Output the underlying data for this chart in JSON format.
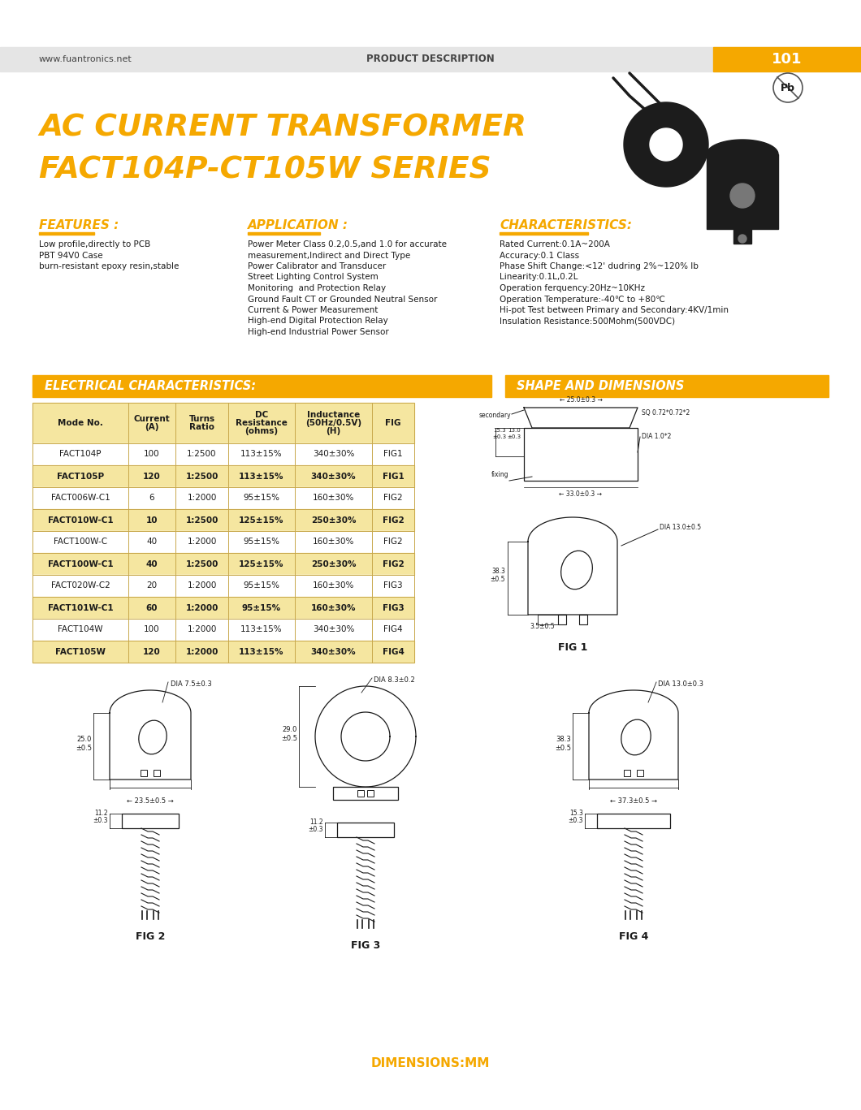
{
  "page_bg": "#ffffff",
  "header_bg": "#e5e5e5",
  "header_orange_bg": "#F5A800",
  "header_left_text": "www.fuantronics.net",
  "header_center_text": "PRODUCT DESCRIPTION",
  "header_right_text": "101",
  "title_line1": "AC CURRENT TRANSFORMER",
  "title_line2": "FACT104P-CT105W SERIES",
  "title_color": "#F5A800",
  "section_features_title": "FEATURES :",
  "section_application_title": "APPLICATION :",
  "section_characteristics_title": "CHARACTERISTICS:",
  "features_text": "Low profile,directly to PCB\nPBT 94V0 Case\nburn-resistant epoxy resin,stable",
  "application_text": "Power Meter Class 0.2,0.5,and 1.0 for accurate\nmeasurement,Indirect and Direct Type\nPower Calibrator and Transducer\nStreet Lighting Control System\nMonitoring  and Protection Relay\nGround Fault CT or Grounded Neutral Sensor\nCurrent & Power Measurement\nHigh-end Digital Protection Relay\nHigh-end Industrial Power Sensor",
  "characteristics_text": "Rated Current:0.1A~200A\nAccuracy:0.1 Class\nPhase Shift Change:<12' dudring 2%~120% Ib\nLinearity:0.1L,0.2L\nOperation ferquency:20Hz~10KHz\nOperation Temperature:-40℃ to +80℃\nHi-pot Test between Primary and Secondary:4KV/1min\nInsulation Resistance:500Mohm(500VDC)",
  "elec_section_title": "ELECTRICAL CHARACTERISTICS:",
  "shape_section_title": "SHAPE AND DIMENSIONS",
  "table_headers": [
    "Mode No.",
    "Current\n(A)",
    "Turns\nRatio",
    "DC\nResistance\n(ohms)",
    "Inductance\n(50Hz/0.5V)\n(H)",
    "FIG"
  ],
  "table_data": [
    [
      "FACT104P",
      "100",
      "1:2500",
      "113±15%",
      "340±30%",
      "FIG1"
    ],
    [
      "FACT105P",
      "120",
      "1:2500",
      "113±15%",
      "340±30%",
      "FIG1"
    ],
    [
      "FACT006W-C1",
      "6",
      "1:2000",
      "95±15%",
      "160±30%",
      "FIG2"
    ],
    [
      "FACT010W-C1",
      "10",
      "1:2500",
      "125±15%",
      "250±30%",
      "FIG2"
    ],
    [
      "FACT100W-C",
      "40",
      "1:2000",
      "95±15%",
      "160±30%",
      "FIG2"
    ],
    [
      "FACT100W-C1",
      "40",
      "1:2500",
      "125±15%",
      "250±30%",
      "FIG2"
    ],
    [
      "FACT020W-C2",
      "20",
      "1:2000",
      "95±15%",
      "160±30%",
      "FIG3"
    ],
    [
      "FACT101W-C1",
      "60",
      "1:2000",
      "95±15%",
      "160±30%",
      "FIG3"
    ],
    [
      "FACT104W",
      "100",
      "1:2000",
      "113±15%",
      "340±30%",
      "FIG4"
    ],
    [
      "FACT105W",
      "120",
      "1:2000",
      "113±15%",
      "340±30%",
      "FIG4"
    ]
  ],
  "highlight_rows": [
    1,
    3,
    5,
    7,
    9
  ],
  "dimensions_label": "DIMENSIONS:MM",
  "orange_color": "#F5A800"
}
